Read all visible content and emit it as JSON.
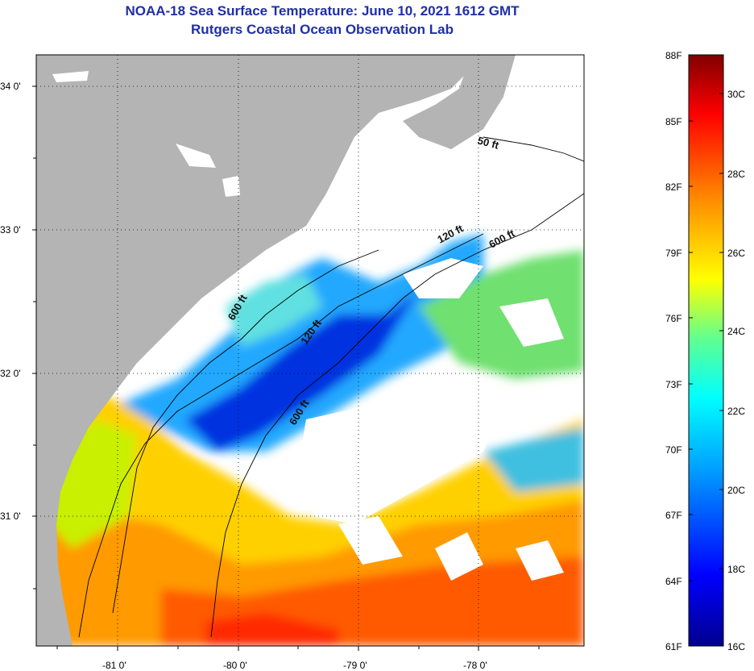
{
  "title": {
    "line1": "NOAA-18 Sea Surface Temperature:  June 10, 2021 1612 GMT",
    "line2": "Rutgers Coastal Ocean Observation Lab"
  },
  "map": {
    "lat_labels": [
      "34 0'",
      "33 0'",
      "32 0'",
      "31 0'"
    ],
    "lon_labels": [
      "-81 0'",
      "-80 0'",
      "-79 0'",
      "-78 0'"
    ],
    "contours": [
      "50 ft",
      "120 ft",
      "600 ft",
      "120 ft",
      "600 ft",
      "600 ft"
    ],
    "colors": {
      "land": "#b4b4b4",
      "cloud": "#ffffff"
    }
  },
  "colorbar": {
    "fahrenheit": [
      "88F",
      "85F",
      "82F",
      "79F",
      "76F",
      "73F",
      "70F",
      "67F",
      "64F",
      "61F"
    ],
    "celsius": [
      "30C",
      "28C",
      "26C",
      "24C",
      "22C",
      "20C",
      "18C",
      "16C"
    ],
    "range_f": [
      61,
      88
    ],
    "palette": [
      "#00008f",
      "#0000ff",
      "#00a0ff",
      "#00ffff",
      "#60ff90",
      "#ffff00",
      "#ff9000",
      "#ff0000",
      "#800000"
    ]
  }
}
